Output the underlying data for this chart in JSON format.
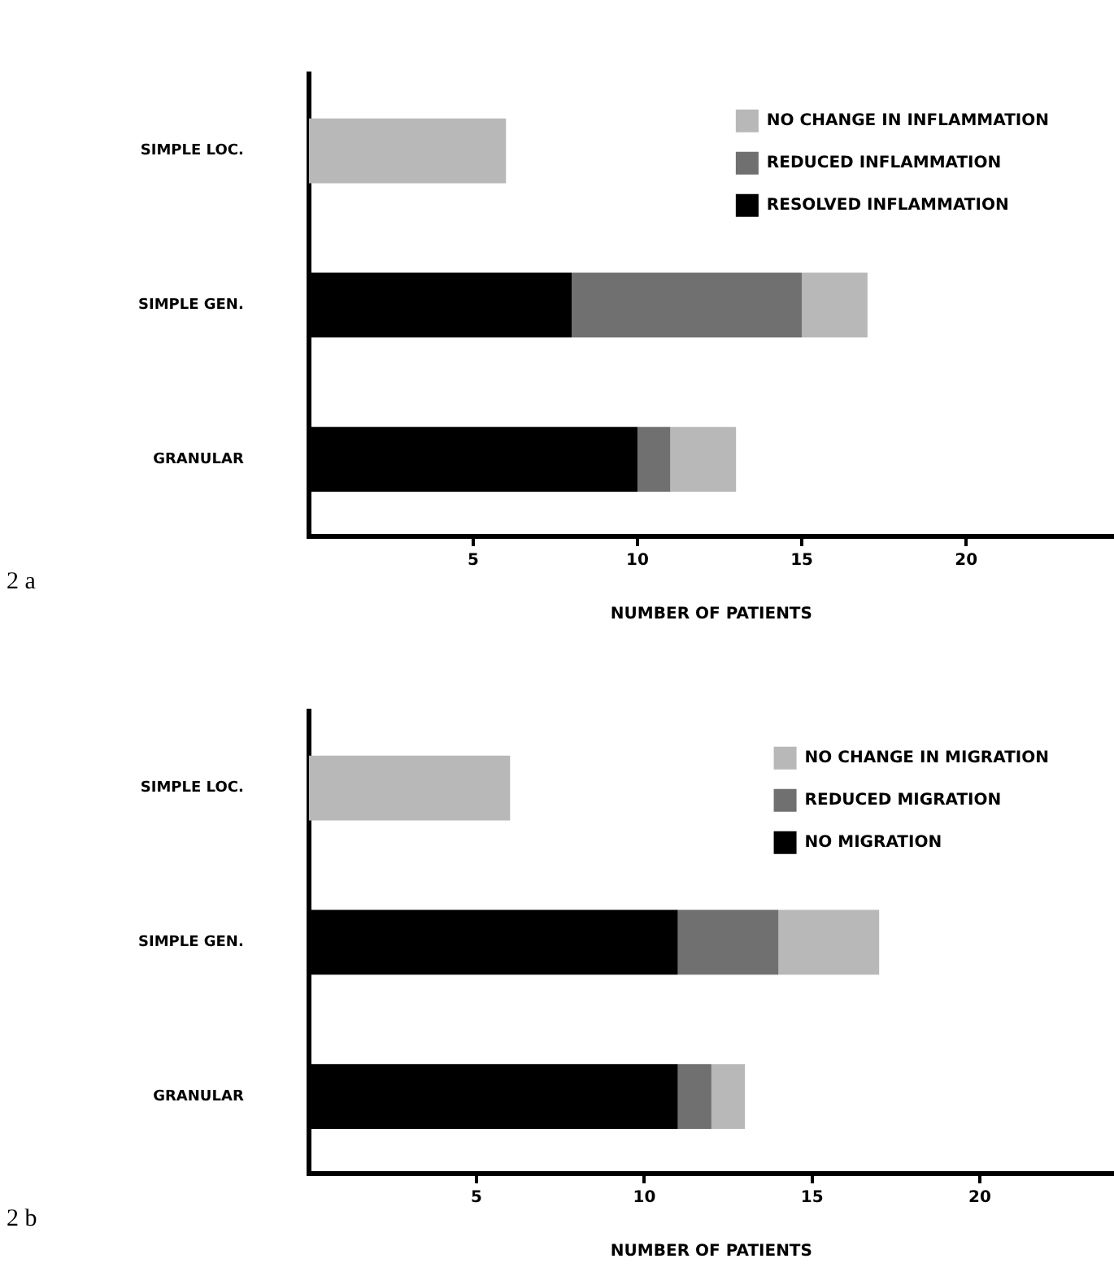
{
  "chart_data": [
    {
      "type": "bar",
      "orientation": "horizontal",
      "stacked": true,
      "categories": [
        "SIMPLE LOC.",
        "SIMPLE GEN.",
        "GRANULAR"
      ],
      "series": [
        {
          "name": "RESOLVED INFLAMMATION",
          "color": "#000000",
          "values": [
            0,
            8,
            10
          ]
        },
        {
          "name": "REDUCED INFLAMMATION",
          "color": "#707070",
          "values": [
            0,
            7,
            1
          ]
        },
        {
          "name": "NO CHANGE IN INFLAMMATION",
          "color": "#b8b8b8",
          "values": [
            6,
            2,
            2
          ]
        }
      ],
      "xlabel": "NUMBER OF PATIENTS",
      "xlim": [
        0,
        24.5
      ],
      "xticks": [
        5,
        10,
        15,
        20
      ],
      "grid": false,
      "legend": "top right",
      "annotations": [
        "2 a"
      ]
    },
    {
      "type": "bar",
      "orientation": "horizontal",
      "stacked": true,
      "categories": [
        "SIMPLE LOC.",
        "SIMPLE GEN.",
        "GRANULAR"
      ],
      "series": [
        {
          "name": "NO MIGRATION",
          "color": "#000000",
          "values": [
            0,
            11,
            11
          ]
        },
        {
          "name": "REDUCED MIGRATION",
          "color": "#707070",
          "values": [
            0,
            3,
            1
          ]
        },
        {
          "name": "NO CHANGE IN MIGRATION",
          "color": "#b8b8b8",
          "values": [
            6,
            3,
            1
          ]
        }
      ],
      "xlabel": "NUMBER OF PATIENTS",
      "xlim": [
        0,
        24
      ],
      "xticks": [
        5,
        10,
        15,
        20
      ],
      "grid": false,
      "legend": "top right",
      "annotations": [
        "2 b"
      ]
    }
  ]
}
